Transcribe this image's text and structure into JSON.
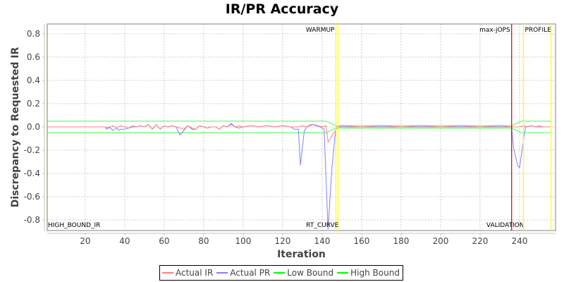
{
  "chart_data": {
    "type": "line",
    "title": "IR/PR Accuracy",
    "xlabel": "Iteration",
    "ylabel": "Discrepancy to Requested IR",
    "xlim": [
      1,
      256
    ],
    "ylim": [
      -0.88,
      0.88
    ],
    "grid": true,
    "legend_position": "bottom",
    "x_ticks": [
      20,
      40,
      60,
      80,
      100,
      120,
      140,
      160,
      180,
      200,
      220,
      240
    ],
    "y_ticks": [
      0.8,
      0.6,
      0.4,
      0.2,
      0.0,
      -0.2,
      -0.4,
      -0.6,
      -0.8
    ],
    "y_tick_labels": [
      "0.8",
      "0.6",
      "0.4",
      "0.2",
      "0.0",
      "-0.2",
      "-0.4",
      "-0.6",
      "-0.8"
    ],
    "series": [
      {
        "name": "Actual IR",
        "color": "#ff8080",
        "points": [
          [
            1,
            0
          ],
          [
            30,
            0
          ],
          [
            32,
            -0.01
          ],
          [
            34,
            0.01
          ],
          [
            36,
            -0.01
          ],
          [
            38,
            0.01
          ],
          [
            40,
            0
          ],
          [
            42,
            -0.01
          ],
          [
            44,
            0.01
          ],
          [
            46,
            0
          ],
          [
            48,
            0.01
          ],
          [
            50,
            0
          ],
          [
            52,
            0.02
          ],
          [
            54,
            -0.02
          ],
          [
            56,
            0.02
          ],
          [
            58,
            -0.02
          ],
          [
            60,
            0.01
          ],
          [
            62,
            0
          ],
          [
            64,
            0.01
          ],
          [
            66,
            0
          ],
          [
            68,
            -0.01
          ],
          [
            70,
            -0.02
          ],
          [
            72,
            0.01
          ],
          [
            74,
            -0.01
          ],
          [
            76,
            -0.02
          ],
          [
            78,
            0.01
          ],
          [
            80,
            0
          ],
          [
            82,
            -0.01
          ],
          [
            84,
            0
          ],
          [
            86,
            0
          ],
          [
            88,
            -0.02
          ],
          [
            90,
            0.01
          ],
          [
            92,
            0
          ],
          [
            94,
            0.02
          ],
          [
            96,
            0
          ],
          [
            98,
            0.01
          ],
          [
            100,
            0
          ],
          [
            104,
            0.01
          ],
          [
            108,
            0
          ],
          [
            112,
            0.01
          ],
          [
            116,
            0
          ],
          [
            120,
            0.01
          ],
          [
            124,
            0
          ],
          [
            128,
            0
          ],
          [
            130,
            0.01
          ],
          [
            132,
            0
          ],
          [
            134,
            0.01
          ],
          [
            136,
            0.02
          ],
          [
            138,
            0.01
          ],
          [
            140,
            0
          ],
          [
            142,
            0.01
          ],
          [
            143,
            -0.13
          ],
          [
            146,
            -0.05
          ],
          [
            148,
            0
          ],
          [
            150,
            0.01
          ],
          [
            160,
            0
          ],
          [
            170,
            0.01
          ],
          [
            180,
            0
          ],
          [
            190,
            0.01
          ],
          [
            200,
            0
          ],
          [
            210,
            0.01
          ],
          [
            220,
            0
          ],
          [
            230,
            0.01
          ],
          [
            236,
            0
          ],
          [
            240,
            0
          ],
          [
            242,
            0.01
          ],
          [
            244,
            0
          ],
          [
            246,
            0.01
          ],
          [
            248,
            0
          ],
          [
            250,
            0.01
          ],
          [
            252,
            0
          ],
          [
            256,
            0
          ]
        ]
      },
      {
        "name": "Actual PR",
        "color": "#8080ff",
        "points": [
          [
            1,
            0
          ],
          [
            30,
            0
          ],
          [
            31,
            -0.02
          ],
          [
            32,
            0
          ],
          [
            34,
            -0.03
          ],
          [
            36,
            -0.01
          ],
          [
            37,
            -0.03
          ],
          [
            38,
            -0.02
          ],
          [
            40,
            -0.02
          ],
          [
            42,
            -0.01
          ],
          [
            44,
            0
          ],
          [
            46,
            0
          ],
          [
            48,
            0.01
          ],
          [
            50,
            0
          ],
          [
            52,
            0.02
          ],
          [
            54,
            -0.02
          ],
          [
            56,
            0.02
          ],
          [
            58,
            -0.02
          ],
          [
            60,
            0.01
          ],
          [
            62,
            0
          ],
          [
            64,
            0.01
          ],
          [
            66,
            0
          ],
          [
            68,
            -0.07
          ],
          [
            70,
            -0.03
          ],
          [
            72,
            0.01
          ],
          [
            74,
            -0.02
          ],
          [
            76,
            -0.02
          ],
          [
            78,
            0.01
          ],
          [
            80,
            0
          ],
          [
            82,
            -0.01
          ],
          [
            84,
            0
          ],
          [
            86,
            0
          ],
          [
            88,
            -0.02
          ],
          [
            90,
            0.01
          ],
          [
            92,
            0
          ],
          [
            94,
            0.03
          ],
          [
            96,
            0
          ],
          [
            98,
            -0.01
          ],
          [
            100,
            0
          ],
          [
            104,
            0.01
          ],
          [
            108,
            0
          ],
          [
            112,
            0.01
          ],
          [
            116,
            0
          ],
          [
            120,
            0.01
          ],
          [
            124,
            0
          ],
          [
            126,
            -0.02
          ],
          [
            128,
            -0.02
          ],
          [
            129,
            -0.33
          ],
          [
            131,
            -0.03
          ],
          [
            133,
            0.01
          ],
          [
            135,
            0.02
          ],
          [
            137,
            0.01
          ],
          [
            139,
            0
          ],
          [
            141,
            -0.02
          ],
          [
            143,
            -0.88
          ],
          [
            145,
            -0.35
          ],
          [
            147,
            0
          ],
          [
            150,
            0
          ],
          [
            160,
            0
          ],
          [
            170,
            0
          ],
          [
            180,
            0
          ],
          [
            190,
            0
          ],
          [
            200,
            0
          ],
          [
            210,
            0
          ],
          [
            220,
            0
          ],
          [
            230,
            0
          ],
          [
            236,
            0
          ],
          [
            237,
            -0.18
          ],
          [
            239,
            -0.33
          ],
          [
            240,
            -0.35
          ],
          [
            242,
            -0.12
          ],
          [
            243,
            0
          ],
          [
            246,
            0.01
          ],
          [
            248,
            0
          ],
          [
            252,
            0
          ],
          [
            256,
            0
          ]
        ]
      },
      {
        "name": "Low Bound",
        "color": "#00ff00",
        "points": [
          [
            1,
            -0.05
          ],
          [
            142,
            -0.05
          ],
          [
            147,
            -0.01
          ],
          [
            236,
            -0.01
          ],
          [
            241,
            -0.05
          ],
          [
            256,
            -0.05
          ]
        ]
      },
      {
        "name": "High Bound",
        "color": "#00ff00",
        "points": [
          [
            1,
            0.05
          ],
          [
            142,
            0.05
          ],
          [
            147,
            0.01
          ],
          [
            236,
            0.01
          ],
          [
            241,
            0.05
          ],
          [
            256,
            0.05
          ]
        ]
      }
    ],
    "markers": [
      {
        "x": 147,
        "color": "#ffff00",
        "label": "WARMUP",
        "label_pos": "top-left"
      },
      {
        "x": 148,
        "color": "#ffff00",
        "label": "RT_CURVE",
        "label_pos": "bottom-left"
      },
      {
        "x": 236,
        "color": "#cc0000",
        "label": "max-jOPS",
        "label_pos": "top-left"
      },
      {
        "x": 242,
        "color": "#ffff00",
        "label": "VALIDATION",
        "label_pos": "bottom-left"
      },
      {
        "x": 242,
        "color": "#ffff00",
        "label": "PROFILE",
        "label_pos": "top-right"
      },
      {
        "x": 256,
        "color": "#ffff00",
        "label": "",
        "label_pos": "none"
      }
    ],
    "annotations": [
      {
        "text": "HIGH_BOUND_IR",
        "x": 1,
        "y": -0.85
      }
    ]
  },
  "legend": {
    "items": [
      {
        "label": "Actual IR",
        "color": "#ff8080"
      },
      {
        "label": "Actual PR",
        "color": "#8080ff"
      },
      {
        "label": "Low Bound",
        "color": "#00ff00"
      },
      {
        "label": "High Bound",
        "color": "#00ff00"
      }
    ]
  }
}
